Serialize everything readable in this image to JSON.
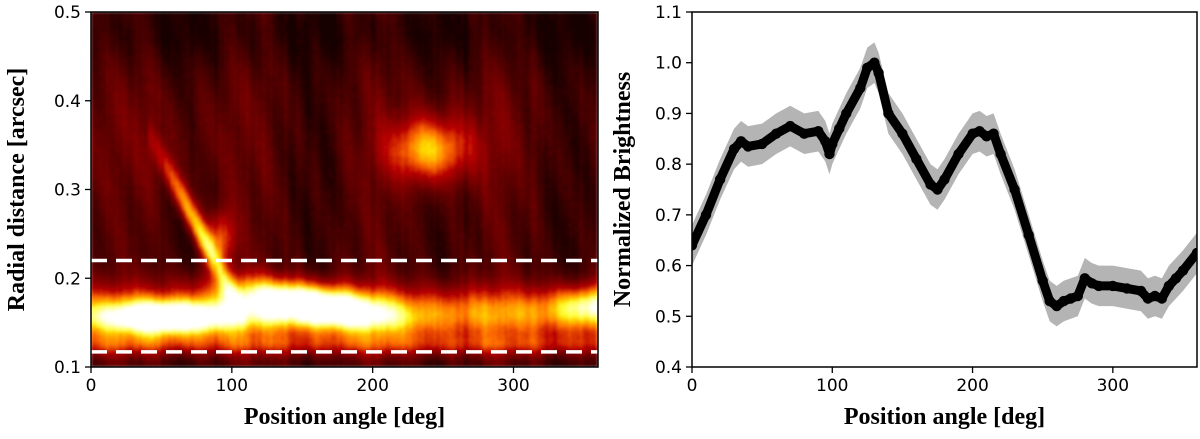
{
  "colors": {
    "background": "#ffffff",
    "axis": "#000000",
    "line": "#000000",
    "band": "#b4b4b4",
    "dashed": "#ffffff",
    "map_low": "#2a0000",
    "map_mid": "#b22200",
    "map_high": "#ffffff"
  },
  "chart_data": [
    {
      "type": "heatmap",
      "title": "",
      "xlabel": "Position angle [deg]",
      "ylabel": "Radial distance [arcsec]",
      "xlim": [
        0,
        360
      ],
      "ylim": [
        0.1,
        0.5
      ],
      "xticks": [
        0,
        100,
        200,
        300
      ],
      "yticks": [
        0.1,
        0.2,
        0.3,
        0.4,
        0.5
      ],
      "xtick_labels": [
        "0",
        "100",
        "200",
        "300"
      ],
      "ytick_labels": [
        "0.1",
        "0.2",
        "0.3",
        "0.4",
        "0.5"
      ],
      "colormap": "gist_heat",
      "hlines": [
        0.22,
        0.117
      ],
      "features": [
        {
          "name": "ring",
          "pa_range": [
            0,
            360
          ],
          "r_center": 0.16,
          "r_width": 0.035,
          "intensity": 0.55
        },
        {
          "name": "bright-arc-west",
          "pa_range": [
            20,
            110
          ],
          "r_center": 0.155,
          "intensity": 1.0
        },
        {
          "name": "bright-arc-center",
          "pa_range": [
            90,
            230
          ],
          "r_center": 0.17,
          "intensity": 1.0
        },
        {
          "name": "spiral-arm",
          "pa_range": [
            50,
            100
          ],
          "r_range": [
            0.2,
            0.33
          ],
          "intensity": 0.75
        },
        {
          "name": "outer-blob",
          "pa_center": 245,
          "r_center": 0.35,
          "intensity": 0.7
        }
      ]
    },
    {
      "type": "line",
      "title": "",
      "xlabel": "Position angle [deg]",
      "ylabel": "Normalized Brightness",
      "xlim": [
        0,
        360
      ],
      "ylim": [
        0.4,
        1.1
      ],
      "xticks": [
        0,
        100,
        200,
        300
      ],
      "yticks": [
        0.4,
        0.5,
        0.6,
        0.7,
        0.8,
        0.9,
        1.0,
        1.1
      ],
      "xtick_labels": [
        "0",
        "100",
        "200",
        "300"
      ],
      "ytick_labels": [
        "0.4",
        "0.5",
        "0.6",
        "0.7",
        "0.8",
        "0.9",
        "1.0",
        "1.1"
      ],
      "band_halfwidth": 0.04,
      "x": [
        0,
        10,
        20,
        30,
        35,
        40,
        50,
        60,
        70,
        80,
        90,
        95,
        98,
        100,
        105,
        110,
        120,
        125,
        130,
        133,
        140,
        150,
        160,
        170,
        175,
        180,
        190,
        200,
        205,
        210,
        215,
        220,
        230,
        240,
        250,
        255,
        260,
        265,
        270,
        275,
        280,
        285,
        290,
        300,
        310,
        320,
        325,
        330,
        335,
        340,
        345,
        350,
        360
      ],
      "y": [
        0.64,
        0.7,
        0.77,
        0.83,
        0.845,
        0.835,
        0.84,
        0.86,
        0.875,
        0.86,
        0.865,
        0.845,
        0.82,
        0.84,
        0.87,
        0.9,
        0.95,
        0.99,
        1.0,
        0.98,
        0.9,
        0.86,
        0.81,
        0.76,
        0.75,
        0.77,
        0.82,
        0.86,
        0.865,
        0.855,
        0.86,
        0.82,
        0.75,
        0.66,
        0.57,
        0.53,
        0.52,
        0.53,
        0.535,
        0.54,
        0.575,
        0.565,
        0.56,
        0.56,
        0.555,
        0.55,
        0.535,
        0.54,
        0.535,
        0.56,
        0.575,
        0.59,
        0.625
      ]
    }
  ]
}
